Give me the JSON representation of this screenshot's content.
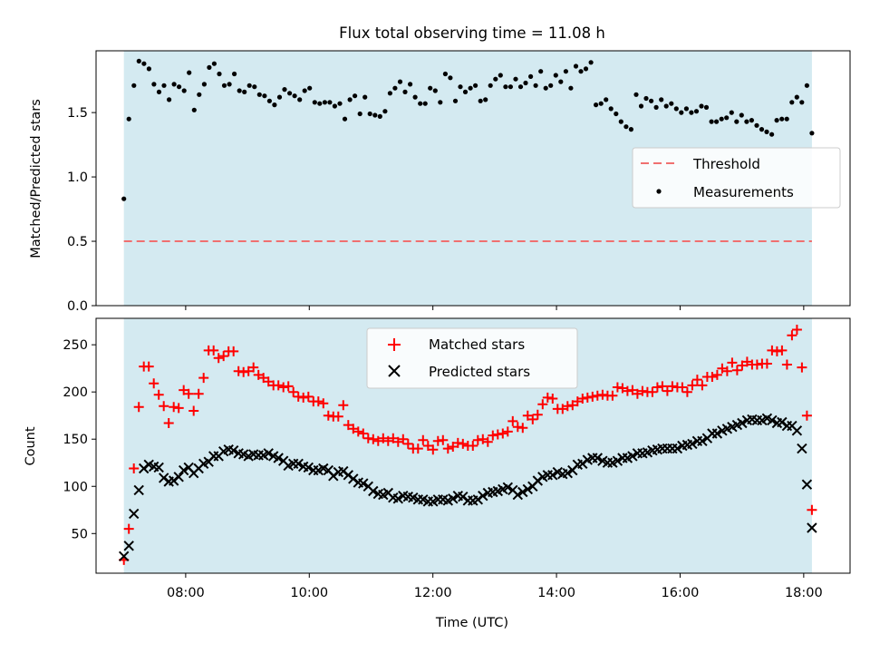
{
  "chart_data": [
    {
      "type": "scatter",
      "title": "Flux total observing time = 11.08 h",
      "xlabel": "",
      "ylabel": "Matched/Predicted stars",
      "xlim_hours": [
        6.55,
        18.75
      ],
      "ylim": [
        0,
        1.98
      ],
      "yticks": [
        "0.0",
        "0.5",
        "1.0",
        "1.5"
      ],
      "shaded_span_hours": [
        7.0,
        18.133
      ],
      "shade_color": "#d4eaf1",
      "threshold": {
        "name": "Threshold",
        "value": 0.5,
        "color": "#f07070"
      },
      "measurements": {
        "name": "Measurements",
        "color": "#000000",
        "x_start_hours": 7.0,
        "x_end_hours": 18.133,
        "y": [
          0.83,
          1.45,
          1.71,
          1.9,
          1.88,
          1.84,
          1.72,
          1.66,
          1.71,
          1.6,
          1.72,
          1.7,
          1.67,
          1.81,
          1.52,
          1.64,
          1.72,
          1.85,
          1.88,
          1.8,
          1.71,
          1.72,
          1.8,
          1.67,
          1.66,
          1.71,
          1.7,
          1.64,
          1.63,
          1.59,
          1.56,
          1.62,
          1.68,
          1.65,
          1.63,
          1.6,
          1.67,
          1.69,
          1.58,
          1.57,
          1.58,
          1.58,
          1.55,
          1.57,
          1.45,
          1.6,
          1.63,
          1.49,
          1.62,
          1.49,
          1.48,
          1.47,
          1.51,
          1.65,
          1.69,
          1.74,
          1.66,
          1.72,
          1.62,
          1.57,
          1.57,
          1.69,
          1.67,
          1.58,
          1.8,
          1.77,
          1.59,
          1.7,
          1.66,
          1.69,
          1.71,
          1.59,
          1.6,
          1.71,
          1.76,
          1.79,
          1.7,
          1.7,
          1.76,
          1.7,
          1.73,
          1.78,
          1.71,
          1.82,
          1.69,
          1.71,
          1.79,
          1.74,
          1.82,
          1.69,
          1.86,
          1.82,
          1.84,
          1.89,
          1.56,
          1.57,
          1.6,
          1.53,
          1.49,
          1.43,
          1.39,
          1.37,
          1.64,
          1.55,
          1.61,
          1.59,
          1.54,
          1.6,
          1.55,
          1.57,
          1.53,
          1.5,
          1.53,
          1.5,
          1.51,
          1.55,
          1.54,
          1.43,
          1.43,
          1.45,
          1.46,
          1.5,
          1.43,
          1.48,
          1.43,
          1.44,
          1.4,
          1.37,
          1.35,
          1.33,
          1.44,
          1.45,
          1.45,
          1.58,
          1.62,
          1.58,
          1.71,
          1.34
        ]
      },
      "legend": {
        "placement": "right"
      }
    },
    {
      "type": "scatter",
      "title": "",
      "xlabel": "Time (UTC)",
      "ylabel": "Count",
      "xlim_hours": [
        6.55,
        18.75
      ],
      "xticks": [
        {
          "value": 8,
          "label": "08:00"
        },
        {
          "value": 10,
          "label": "10:00"
        },
        {
          "value": 12,
          "label": "12:00"
        },
        {
          "value": 14,
          "label": "14:00"
        },
        {
          "value": 16,
          "label": "16:00"
        },
        {
          "value": 18,
          "label": "18:00"
        }
      ],
      "ylim": [
        8,
        278
      ],
      "yticks": [
        "50",
        "100",
        "150",
        "200",
        "250"
      ],
      "shaded_span_hours": [
        7.0,
        18.133
      ],
      "shade_color": "#d4eaf1",
      "series": [
        {
          "name": "Matched stars",
          "color": "#ff0000",
          "marker": "plus",
          "x_start_hours": 7.0,
          "x_end_hours": 18.133,
          "values": [
            22,
            55,
            119,
            184,
            227,
            227,
            209,
            197,
            185,
            167,
            184,
            183,
            202,
            198,
            180,
            198,
            215,
            244,
            244,
            236,
            238,
            243,
            243,
            222,
            221,
            222,
            226,
            218,
            215,
            211,
            207,
            207,
            205,
            206,
            200,
            195,
            194,
            195,
            190,
            190,
            188,
            175,
            174,
            174,
            186,
            165,
            161,
            158,
            156,
            151,
            150,
            148,
            151,
            148,
            151,
            147,
            150,
            145,
            140,
            140,
            149,
            143,
            139,
            148,
            149,
            140,
            142,
            146,
            145,
            143,
            143,
            149,
            150,
            147,
            154,
            155,
            156,
            158,
            169,
            163,
            162,
            175,
            171,
            176,
            187,
            194,
            193,
            182,
            182,
            185,
            186,
            190,
            193,
            194,
            195,
            196,
            197,
            196,
            196,
            205,
            204,
            201,
            202,
            198,
            201,
            200,
            200,
            205,
            206,
            201,
            206,
            205,
            205,
            200,
            207,
            213,
            207,
            216,
            216,
            218,
            225,
            222,
            231,
            223,
            228,
            232,
            229,
            229,
            230,
            230,
            244,
            243,
            244,
            229,
            260,
            266,
            226,
            175,
            75
          ]
        },
        {
          "name": "Predicted stars",
          "color": "#000000",
          "marker": "x",
          "x_start_hours": 7.0,
          "x_end_hours": 18.133,
          "values": [
            26,
            37,
            71,
            96,
            119,
            123,
            121,
            120,
            109,
            105,
            106,
            110,
            117,
            120,
            114,
            119,
            124,
            126,
            132,
            132,
            137,
            139,
            138,
            135,
            134,
            132,
            134,
            133,
            133,
            135,
            132,
            130,
            127,
            122,
            124,
            124,
            121,
            120,
            117,
            117,
            119,
            117,
            111,
            115,
            116,
            112,
            108,
            104,
            103,
            100,
            95,
            92,
            91,
            93,
            88,
            87,
            90,
            89,
            88,
            86,
            86,
            84,
            84,
            86,
            86,
            85,
            87,
            90,
            89,
            85,
            85,
            86,
            90,
            93,
            94,
            95,
            97,
            99,
            96,
            91,
            94,
            97,
            100,
            106,
            110,
            112,
            112,
            115,
            113,
            114,
            117,
            123,
            124,
            128,
            130,
            130,
            127,
            125,
            125,
            127,
            130,
            130,
            132,
            135,
            135,
            136,
            138,
            139,
            140,
            140,
            140,
            140,
            143,
            144,
            145,
            148,
            148,
            151,
            156,
            156,
            159,
            161,
            163,
            165,
            167,
            170,
            171,
            170,
            170,
            172,
            170,
            167,
            168,
            164,
            164,
            159,
            140,
            102,
            56
          ]
        }
      ],
      "legend": {
        "placement": "upper center"
      }
    }
  ]
}
